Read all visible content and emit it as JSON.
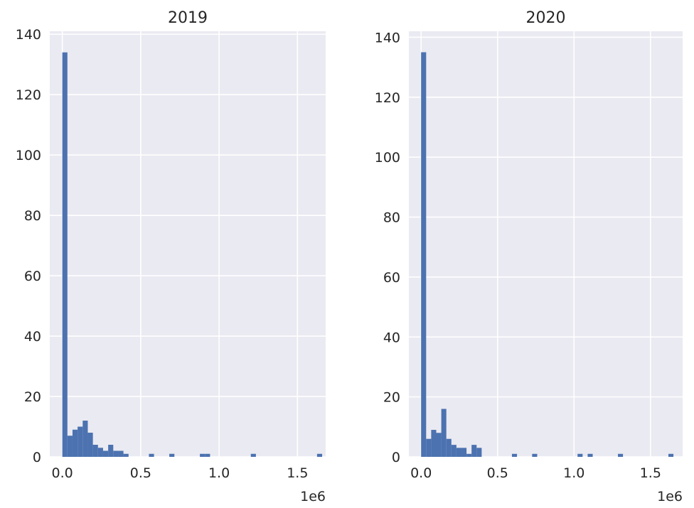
{
  "chart_data": [
    {
      "type": "bar",
      "title": "2019",
      "xlabel": "",
      "ylabel": "",
      "x_offset_label": "1e6",
      "xlim": [
        -0.08,
        1.68
      ],
      "ylim": [
        0,
        141
      ],
      "x_ticks": [
        0.0,
        0.5,
        1.0,
        1.5
      ],
      "x_tick_labels": [
        "0.0",
        "0.5",
        "1.0",
        "1.5"
      ],
      "y_ticks": [
        0,
        20,
        40,
        60,
        80,
        100,
        120,
        140
      ],
      "y_tick_labels": [
        "0",
        "20",
        "40",
        "60",
        "80",
        "100",
        "120",
        "140"
      ],
      "grid": true,
      "bin_start": 0.0,
      "bin_width": 0.0325,
      "values": [
        134,
        7,
        9,
        10,
        12,
        8,
        4,
        3,
        2,
        4,
        2,
        2,
        1,
        0,
        0,
        0,
        0,
        1,
        0,
        0,
        0,
        1,
        0,
        0,
        0,
        0,
        0,
        1,
        1,
        0,
        0,
        0,
        0,
        0,
        0,
        0,
        0,
        1,
        0,
        0,
        0,
        0,
        0,
        0,
        0,
        0,
        0,
        0,
        0,
        0,
        1
      ]
    },
    {
      "type": "bar",
      "title": "2020",
      "xlabel": "",
      "ylabel": "",
      "x_offset_label": "1e6",
      "xlim": [
        -0.08,
        1.71
      ],
      "ylim": [
        0,
        142
      ],
      "x_ticks": [
        0.0,
        0.5,
        1.0,
        1.5
      ],
      "x_tick_labels": [
        "0.0",
        "0.5",
        "1.0",
        "1.5"
      ],
      "y_ticks": [
        0,
        20,
        40,
        60,
        80,
        100,
        120,
        140
      ],
      "y_tick_labels": [
        "0",
        "20",
        "40",
        "60",
        "80",
        "100",
        "120",
        "140"
      ],
      "grid": true,
      "bin_start": 0.0,
      "bin_width": 0.033,
      "values": [
        135,
        6,
        9,
        8,
        16,
        6,
        4,
        3,
        3,
        1,
        4,
        3,
        0,
        0,
        0,
        0,
        0,
        0,
        1,
        0,
        0,
        0,
        1,
        0,
        0,
        0,
        0,
        0,
        0,
        0,
        0,
        1,
        0,
        1,
        0,
        0,
        0,
        0,
        0,
        1,
        0,
        0,
        0,
        0,
        0,
        0,
        0,
        0,
        0,
        1
      ]
    }
  ]
}
